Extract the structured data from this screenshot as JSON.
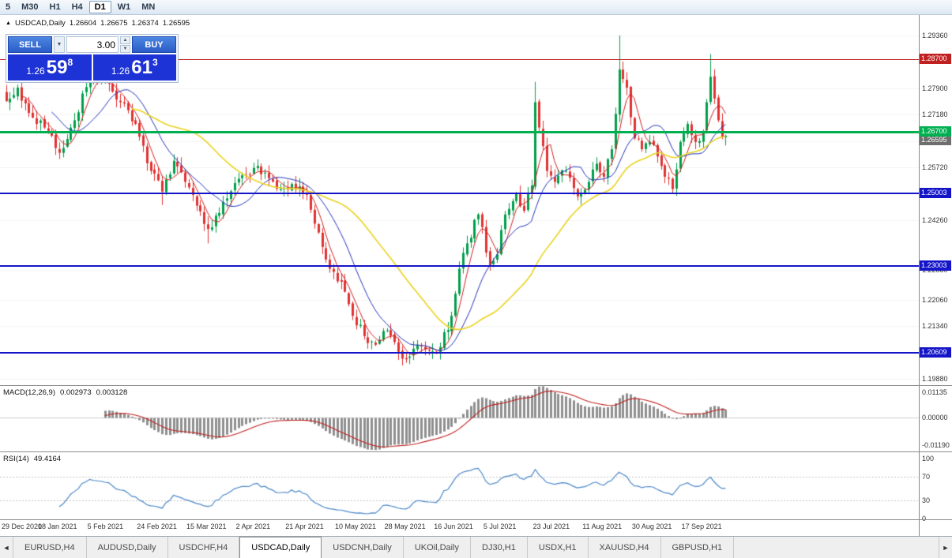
{
  "toolbar": {
    "timeframes": [
      "5",
      "M30",
      "H1",
      "H4",
      "D1",
      "W1",
      "MN"
    ],
    "active": "D1"
  },
  "chart_header": {
    "collapse_icon": "▲",
    "symbol": "USDCAD,Daily",
    "open": "1.26604",
    "high": "1.26675",
    "low": "1.26374",
    "close": "1.26595"
  },
  "trade_panel": {
    "sell_label": "SELL",
    "buy_label": "BUY",
    "volume": "3.00",
    "dropdown_icon": "▼",
    "spin_up_icon": "▲",
    "spin_down_icon": "▼",
    "sell_price": {
      "prefix": "1.26",
      "big": "59",
      "sup": "8"
    },
    "buy_price": {
      "prefix": "1.26",
      "big": "61",
      "sup": "3"
    }
  },
  "macd_header": {
    "title": "MACD(12,26,9)",
    "value_main": "0.002973",
    "value_signal": "0.003128"
  },
  "rsi_header": {
    "title": "RSI(14)",
    "value": "49.4164"
  },
  "tabs": {
    "left_arrow": "◄",
    "right_arrow": "►",
    "items": [
      "EURUSD,H4",
      "AUDUSD,Daily",
      "USDCHF,H4",
      "USDCAD,Daily",
      "USDCNH,Daily",
      "UKOil,Daily",
      "DJ30,H1",
      "USDX,H1",
      "XAUUSD,H4",
      "GBPUSD,H1"
    ],
    "active": "USDCAD,Daily"
  },
  "chart_data": {
    "type": "candlestick",
    "symbol": "USDCAD",
    "timeframe": "Daily",
    "bars": 190,
    "up_color": "#009f4a",
    "down_color": "#e03232",
    "price_scale": {
      "top_price": 1.2936,
      "bottom_price": 1.1988,
      "top_y": 26,
      "bottom_y": 461
    },
    "y_ticks": [
      "1.29360",
      "1.27900",
      "1.27180",
      "1.26440",
      "1.25720",
      "1.24260",
      "1.22880",
      "1.22060",
      "1.21340",
      "1.19880"
    ],
    "x_labels": [
      "29 Dec 2020",
      "18 Jan 2021",
      "5 Feb 2021",
      "24 Feb 2021",
      "15 Mar 2021",
      "2 Apr 2021",
      "21 Apr 2021",
      "10 May 2021",
      "28 May 2021",
      "16 Jun 2021",
      "5 Jul 2021",
      "23 Jul 2021",
      "11 Aug 2021",
      "30 Aug 2021",
      "17 Sep 2021"
    ],
    "x_label_first_bar": 1,
    "x_label_step": 13,
    "levels": [
      {
        "price": 1.287,
        "label": "1.28700",
        "color": "#c02020",
        "line_width": 1
      },
      {
        "price": 1.267,
        "label": "1.26700",
        "color": "#00b050",
        "line_width": 3
      },
      {
        "price": 1.25003,
        "label": "1.25003",
        "color": "#1414c8",
        "line_width": 2
      },
      {
        "price": 1.23003,
        "label": "1.23003",
        "color": "#1414c8",
        "line_width": 2
      },
      {
        "price": 1.20609,
        "label": "1.20609",
        "color": "#1414c8",
        "line_width": 2
      }
    ],
    "current_price": {
      "value": 1.26595,
      "label": "1.26595",
      "color": "#6e6e6e"
    },
    "price_anchors": [
      [
        0,
        1.2755
      ],
      [
        3,
        1.2792
      ],
      [
        6,
        1.2722
      ],
      [
        10,
        1.2682
      ],
      [
        14,
        1.2612
      ],
      [
        18,
        1.2702
      ],
      [
        22,
        1.2826
      ],
      [
        26,
        1.2806
      ],
      [
        30,
        1.2752
      ],
      [
        34,
        1.2692
      ],
      [
        38,
        1.2562
      ],
      [
        41,
        1.2505
      ],
      [
        44,
        1.259
      ],
      [
        47,
        1.2532
      ],
      [
        50,
        1.2466
      ],
      [
        53,
        1.2402
      ],
      [
        56,
        1.2446
      ],
      [
        59,
        1.2506
      ],
      [
        62,
        1.255
      ],
      [
        66,
        1.2576
      ],
      [
        69,
        1.2542
      ],
      [
        72,
        1.2512
      ],
      [
        75,
        1.2526
      ],
      [
        79,
        1.2496
      ],
      [
        82,
        1.2392
      ],
      [
        85,
        1.2292
      ],
      [
        88,
        1.2256
      ],
      [
        91,
        1.2162
      ],
      [
        94,
        1.2106
      ],
      [
        97,
        1.2082
      ],
      [
        100,
        1.2122
      ],
      [
        103,
        1.2062
      ],
      [
        105,
        1.2042
      ],
      [
        108,
        1.2082
      ],
      [
        111,
        1.2066
      ],
      [
        114,
        1.2076
      ],
      [
        117,
        1.2162
      ],
      [
        119,
        1.2292
      ],
      [
        121,
        1.2362
      ],
      [
        124,
        1.2442
      ],
      [
        127,
        1.2302
      ],
      [
        129,
        1.2332
      ],
      [
        131,
        1.2442
      ],
      [
        134,
        1.2502
      ],
      [
        136,
        1.2452
      ],
      [
        138,
        1.2522
      ],
      [
        139,
        1.2752
      ],
      [
        140,
        1.2682
      ],
      [
        142,
        1.2562
      ],
      [
        144,
        1.2532
      ],
      [
        147,
        1.2562
      ],
      [
        150,
        1.2492
      ],
      [
        153,
        1.2532
      ],
      [
        155,
        1.2582
      ],
      [
        157,
        1.2546
      ],
      [
        159,
        1.2622
      ],
      [
        161,
        1.2842
      ],
      [
        163,
        1.2792
      ],
      [
        165,
        1.2652
      ],
      [
        167,
        1.2622
      ],
      [
        169,
        1.2642
      ],
      [
        171,
        1.2602
      ],
      [
        173,
        1.2546
      ],
      [
        175,
        1.2512
      ],
      [
        177,
        1.2642
      ],
      [
        179,
        1.2692
      ],
      [
        181,
        1.2642
      ],
      [
        183,
        1.2672
      ],
      [
        185,
        1.2822
      ],
      [
        186,
        1.2762
      ],
      [
        187,
        1.2702
      ],
      [
        188,
        1.2656
      ],
      [
        189,
        1.26595
      ]
    ],
    "high_overrides": [
      [
        139,
        1.2808
      ],
      [
        161,
        1.2936
      ],
      [
        185,
        1.2885
      ]
    ],
    "low_overrides": [
      [
        41,
        1.2468
      ],
      [
        53,
        1.2362
      ],
      [
        104,
        1.2025
      ]
    ],
    "moving_averages": [
      {
        "period": 5,
        "color": "#d02020",
        "width": 1
      },
      {
        "period": 13,
        "color": "#2233bb",
        "width": 1
      },
      {
        "period": 34,
        "color": "#ead21e",
        "width": 1.6
      }
    ],
    "macd": {
      "fast": 12,
      "slow": 26,
      "signal_period": 9,
      "ticks": [
        "0.01135",
        "0.00000",
        "-0.01190"
      ],
      "scale_max": 0.0131,
      "scale_min": -0.0138,
      "hist_color": "#8f8f8f",
      "signal_color": "#c02020"
    },
    "rsi": {
      "period": 14,
      "ticks": [
        "100",
        "70",
        "30",
        "0"
      ],
      "levels": [
        70,
        30
      ],
      "color": "#4a86c8"
    }
  }
}
